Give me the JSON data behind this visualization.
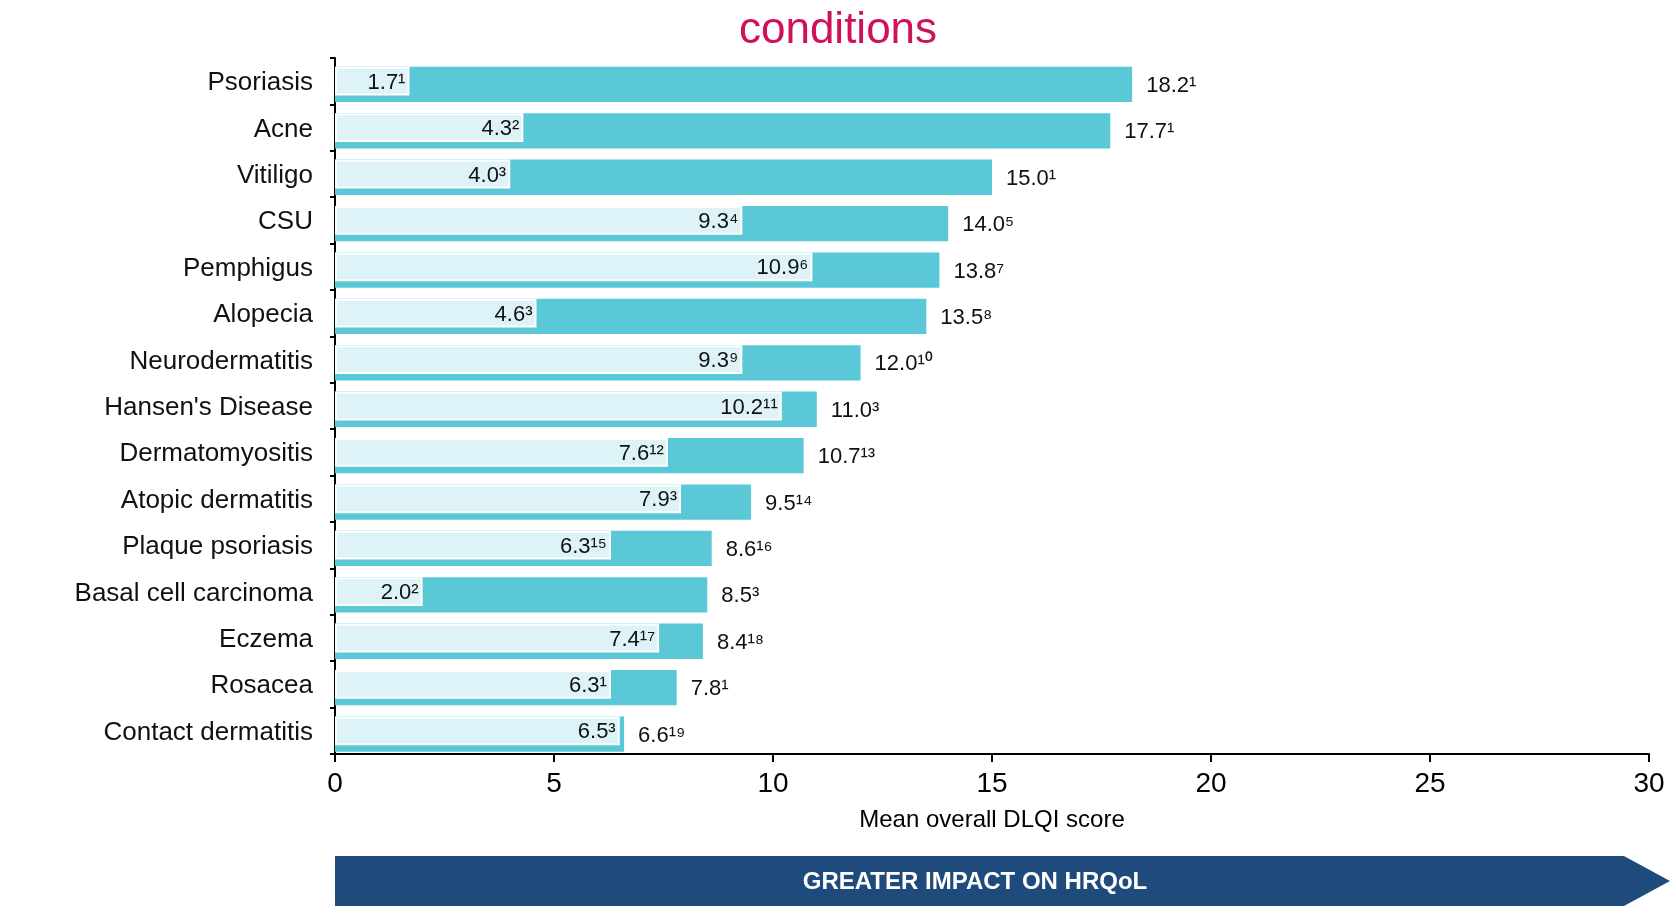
{
  "chart_data": {
    "type": "bar",
    "orientation": "horizontal",
    "title": "conditions",
    "xlabel": "Mean overall DLQI score",
    "categories": [
      "Psoriasis",
      "Acne",
      "Vitiligo",
      "CSU",
      "Pemphigus",
      "Alopecia",
      "Neurodermatitis",
      "Hansen's Disease",
      "Dermatomyositis",
      "Atopic dermatitis",
      "Plaque psoriasis",
      "Basal cell carcinoma",
      "Eczema",
      "Rosacea",
      "Contact dermatitis"
    ],
    "series": [
      {
        "color": "#5bc8d7",
        "values": [
          18.2,
          17.7,
          15.0,
          14.0,
          13.8,
          13.5,
          12.0,
          11.0,
          10.7,
          9.5,
          8.6,
          8.5,
          8.4,
          7.8,
          6.6
        ],
        "value_labels": [
          "18.2¹",
          "17.7¹",
          "15.0¹",
          "14.0⁵",
          "13.8⁷",
          "13.5⁸",
          "12.0¹⁰",
          "11.0³",
          "10.7¹³",
          "9.5¹⁴",
          "8.6¹⁶",
          "8.5³",
          "8.4¹⁸",
          "7.8¹",
          "6.6¹⁹"
        ]
      },
      {
        "color": "#def3f7",
        "values": [
          1.7,
          4.3,
          4.0,
          9.3,
          10.9,
          4.6,
          9.3,
          10.2,
          7.6,
          7.9,
          6.3,
          2.0,
          7.4,
          6.3,
          6.5
        ],
        "value_labels": [
          "1.7¹",
          "4.3²",
          "4.0³",
          "9.3⁴",
          "10.9⁶",
          "4.6³",
          "9.3⁹",
          "10.2¹¹",
          "7.6¹²",
          "7.9³",
          "6.3¹⁵",
          "2.0²",
          "7.4¹⁷",
          "6.3¹",
          "6.5³"
        ]
      }
    ],
    "xlim": [
      0,
      30
    ],
    "xticks": [
      0,
      5,
      10,
      15,
      20,
      25,
      30
    ],
    "grid": false,
    "annotations": [
      "GREATER IMPACT ON HRQoL"
    ]
  }
}
